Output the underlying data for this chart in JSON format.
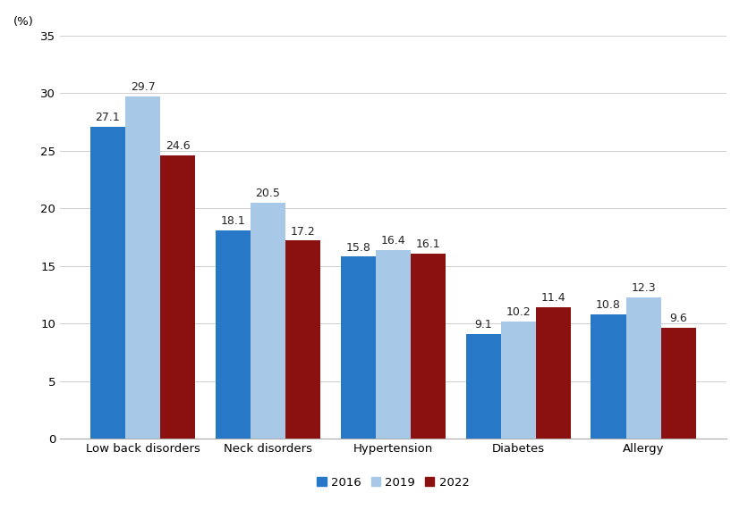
{
  "categories": [
    "Low back disorders",
    "Neck disorders",
    "Hypertension",
    "Diabetes",
    "Allergy"
  ],
  "series": {
    "2016": [
      27.1,
      18.1,
      15.8,
      9.1,
      10.8
    ],
    "2019": [
      29.7,
      20.5,
      16.4,
      10.2,
      12.3
    ],
    "2022": [
      24.6,
      17.2,
      16.1,
      11.4,
      9.6
    ]
  },
  "bar_colors": {
    "2016": "#2878C8",
    "2019": "#A8C8E8",
    "2022": "#8B1010"
  },
  "legend_labels": [
    "2016",
    "2019",
    "2022"
  ],
  "percent_label": "(%)",
  "ylim": [
    0,
    35
  ],
  "yticks": [
    0,
    5,
    10,
    15,
    20,
    25,
    30,
    35
  ],
  "bar_width": 0.28,
  "label_fontsize": 9,
  "tick_fontsize": 9.5,
  "legend_fontsize": 9.5,
  "background_color": "#ffffff",
  "grid_color": "#d0d0d0"
}
